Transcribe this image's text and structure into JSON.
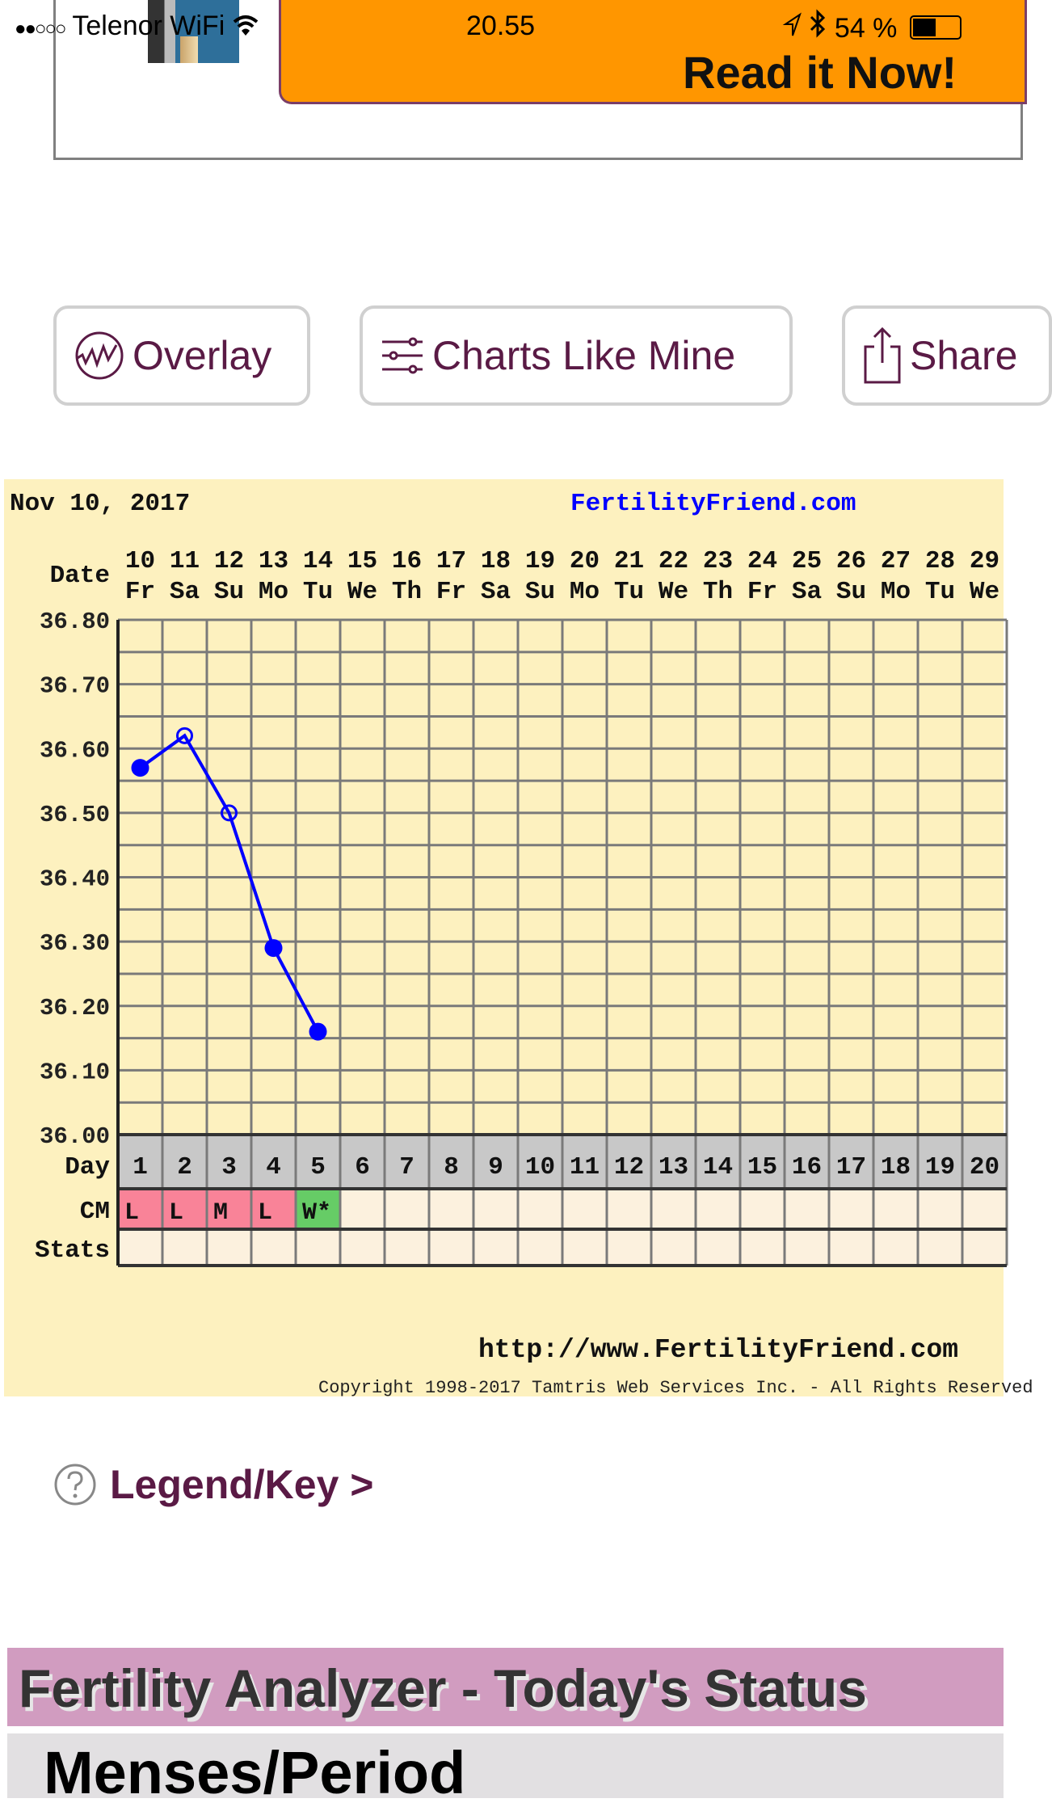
{
  "status_bar": {
    "signal": "●●○○○",
    "carrier": "Telenor WiFi",
    "time": "20.55",
    "battery_text": "54 %",
    "battery_level": 0.54
  },
  "ad": {
    "headline": "Read it Now!",
    "banner_color": "#ff9600"
  },
  "toolbar": {
    "buttons": [
      {
        "label": "Overlay",
        "icon": "overlay-chart-icon"
      },
      {
        "label": "Charts Like Mine",
        "icon": "sliders-icon"
      },
      {
        "label": "Share",
        "icon": "share-icon"
      }
    ]
  },
  "chart_data": {
    "type": "line",
    "title": "Nov 10, 2017",
    "brand": "FertilityFriend.com",
    "url": "http://www.FertilityFriend.com",
    "copyright": "Copyright 1998-2017 Tamtris Web Services Inc. - All Rights Reserved",
    "row_labels": {
      "date": "Date",
      "day": "Day",
      "cm": "CM",
      "stats": "Stats"
    },
    "dates": [
      "10",
      "11",
      "12",
      "13",
      "14",
      "15",
      "16",
      "17",
      "18",
      "19",
      "20",
      "21",
      "22",
      "23",
      "24",
      "25",
      "26",
      "27",
      "28",
      "29"
    ],
    "weekdays": [
      "Fr",
      "Sa",
      "Su",
      "Mo",
      "Tu",
      "We",
      "Th",
      "Fr",
      "Sa",
      "Su",
      "Mo",
      "Tu",
      "We",
      "Th",
      "Fr",
      "Sa",
      "Su",
      "Mo",
      "Tu",
      "We"
    ],
    "days": [
      "1",
      "2",
      "3",
      "4",
      "5",
      "6",
      "7",
      "8",
      "9",
      "10",
      "11",
      "12",
      "13",
      "14",
      "15",
      "16",
      "17",
      "18",
      "19",
      "20"
    ],
    "ylim": [
      36.0,
      36.8
    ],
    "yticks": [
      "36.80",
      "36.70",
      "36.60",
      "36.50",
      "36.40",
      "36.30",
      "36.20",
      "36.10",
      "36.00"
    ],
    "series": [
      {
        "color": "#0000ff",
        "points": [
          {
            "day": 1,
            "temp": 36.57,
            "open": false
          },
          {
            "day": 2,
            "temp": 36.62,
            "open": true
          },
          {
            "day": 3,
            "temp": 36.5,
            "open": true
          },
          {
            "day": 4,
            "temp": 36.29,
            "open": false
          },
          {
            "day": 5,
            "temp": 36.16,
            "open": false
          }
        ]
      }
    ],
    "cm": [
      {
        "day": 1,
        "value": "L",
        "color": "#f98398"
      },
      {
        "day": 2,
        "value": "L",
        "color": "#f98398"
      },
      {
        "day": 3,
        "value": "M",
        "color": "#f98398"
      },
      {
        "day": 4,
        "value": "L",
        "color": "#f98398"
      },
      {
        "day": 5,
        "value": "W*",
        "color": "#66cc66"
      }
    ],
    "grid": true
  },
  "legend_link": {
    "label": "Legend/Key >"
  },
  "analyzer": {
    "title": "Fertility Analyzer - Today's Status",
    "section": "Menses/Period"
  }
}
